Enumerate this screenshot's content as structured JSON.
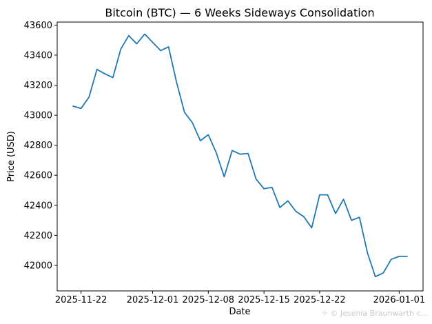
{
  "chart_data": {
    "type": "line",
    "title": "Bitcoin (BTC) — 6 Weeks Sideways Consolidation",
    "xlabel": "Date",
    "ylabel": "Price (USD)",
    "line_color": "#1f77b4",
    "grid": false,
    "xlim": [
      "2025-11-19",
      "2026-01-04"
    ],
    "ylim": [
      41830,
      43620
    ],
    "x_ticks": [
      "2025-11-22",
      "2025-12-01",
      "2025-12-08",
      "2025-12-15",
      "2025-12-22",
      "2026-01-01"
    ],
    "y_ticks": [
      42000,
      42200,
      42400,
      42600,
      42800,
      43000,
      43200,
      43400,
      43600
    ],
    "series": [
      {
        "x": [
          "2025-11-21",
          "2025-11-22",
          "2025-11-23",
          "2025-11-24",
          "2025-11-25",
          "2025-11-26",
          "2025-11-27",
          "2025-11-28",
          "2025-11-29",
          "2025-11-30",
          "2025-12-01",
          "2025-12-02",
          "2025-12-03",
          "2025-12-04",
          "2025-12-05",
          "2025-12-06",
          "2025-12-07",
          "2025-12-08",
          "2025-12-09",
          "2025-12-10",
          "2025-12-11",
          "2025-12-12",
          "2025-12-13",
          "2025-12-14",
          "2025-12-15",
          "2025-12-16",
          "2025-12-17",
          "2025-12-18",
          "2025-12-19",
          "2025-12-20",
          "2025-12-21",
          "2025-12-22",
          "2025-12-23",
          "2025-12-24",
          "2025-12-25",
          "2025-12-26",
          "2025-12-27",
          "2025-12-28",
          "2025-12-29",
          "2025-12-30",
          "2025-12-31",
          "2026-01-01",
          "2026-01-02"
        ],
        "values": [
          43060,
          43045,
          43120,
          43305,
          43275,
          43250,
          43440,
          43530,
          43475,
          43540,
          43485,
          43430,
          43455,
          43220,
          43020,
          42950,
          42830,
          42870,
          42750,
          42590,
          42765,
          42740,
          42745,
          42575,
          42510,
          42520,
          42385,
          42430,
          42360,
          42325,
          42250,
          42470,
          42470,
          42345,
          42440,
          42300,
          42320,
          42085,
          41925,
          41950,
          42040,
          42060,
          42060
        ]
      }
    ]
  },
  "watermark": "© Jesenia Braunwarth c..."
}
